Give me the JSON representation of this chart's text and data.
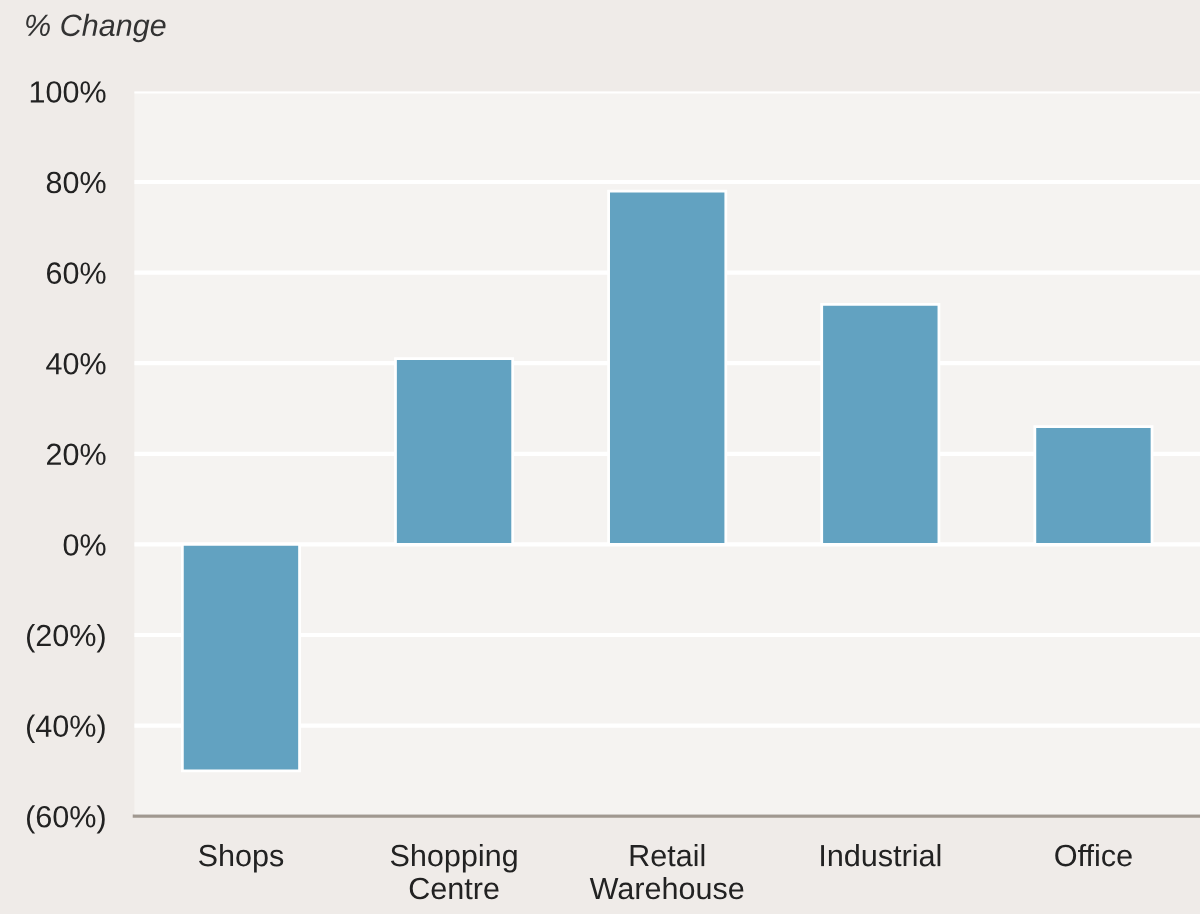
{
  "chart_data": {
    "type": "bar",
    "ylabel": "% Change",
    "categories": [
      "Shops",
      "Shopping\nCentre",
      "Retail\nWarehouse",
      "Industrial",
      "Office"
    ],
    "series": [
      {
        "color": "#62a2c1",
        "values": [
          -50,
          41,
          78,
          53,
          26
        ]
      }
    ],
    "ylim": [
      -60,
      100
    ],
    "yticks": [
      {
        "value": -60,
        "label": "(60%)"
      },
      {
        "value": -40,
        "label": "(40%)"
      },
      {
        "value": -20,
        "label": "(20%)"
      },
      {
        "value": 0,
        "label": "0%"
      },
      {
        "value": 20,
        "label": "20%"
      },
      {
        "value": 40,
        "label": "40%"
      },
      {
        "value": 60,
        "label": "60%"
      },
      {
        "value": 80,
        "label": "80%"
      },
      {
        "value": 100,
        "label": "100%"
      }
    ],
    "grid": "y"
  }
}
